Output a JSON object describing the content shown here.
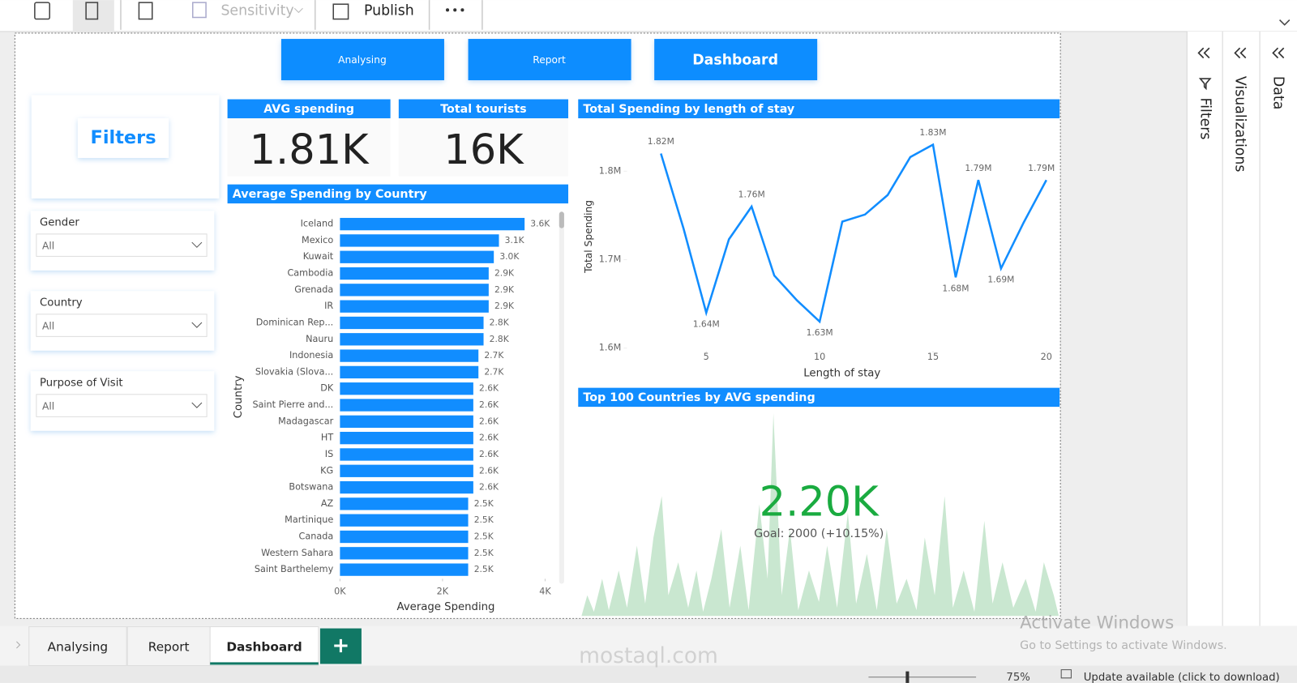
{
  "toolbar": {
    "sensitivity": "Sensitivity",
    "publish": "Publish"
  },
  "nav": [
    "Analysing",
    "Report",
    "Dashboard"
  ],
  "filters": {
    "title": "Filters",
    "slicers": [
      {
        "label": "Gender",
        "value": "All"
      },
      {
        "label": "Country",
        "value": "All"
      },
      {
        "label": "Purpose of Visit",
        "value": "All"
      }
    ]
  },
  "cards": [
    {
      "title": "AVG spending",
      "value": "1.81K"
    },
    {
      "title": "Total tourists",
      "value": "16K"
    }
  ],
  "chart_data": [
    {
      "type": "bar",
      "title": "Average Spending by Country",
      "x_label": "Average Spending",
      "y_label": "Country",
      "orientation": "horizontal",
      "color": "#118DFF",
      "categories": [
        "Iceland",
        "Mexico",
        "Kuwait",
        "Cambodia",
        "Grenada",
        "IR",
        "Dominican Rep...",
        "Nauru",
        "Indonesia",
        "Slovakia (Slova...",
        "DK",
        "Saint Pierre and...",
        "Madagascar",
        "HT",
        "IS",
        "KG",
        "Botswana",
        "AZ",
        "Martinique",
        "Canada",
        "Western Sahara",
        "Saint Barthelemy"
      ],
      "values": [
        3600,
        3100,
        3000,
        2900,
        2900,
        2900,
        2800,
        2800,
        2700,
        2700,
        2600,
        2600,
        2600,
        2600,
        2600,
        2600,
        2600,
        2500,
        2500,
        2500,
        2500,
        2500
      ],
      "value_labels": [
        "3.6K",
        "3.1K",
        "3.0K",
        "2.9K",
        "2.9K",
        "2.9K",
        "2.8K",
        "2.8K",
        "2.7K",
        "2.7K",
        "2.6K",
        "2.6K",
        "2.6K",
        "2.6K",
        "2.6K",
        "2.6K",
        "2.6K",
        "2.5K",
        "2.5K",
        "2.5K",
        "2.5K",
        "2.5K"
      ],
      "xlim": [
        0,
        4000
      ],
      "xticks": [
        {
          "value": 0,
          "label": "0K"
        },
        {
          "value": 2000,
          "label": "2K"
        },
        {
          "value": 4000,
          "label": "4K"
        }
      ]
    },
    {
      "type": "line",
      "title": "Total Spending by length of stay",
      "x_label": "Length of stay",
      "y_label": "Total Spending",
      "color": "#118DFF",
      "x": [
        3,
        4,
        5,
        6,
        7,
        8,
        9,
        10,
        11,
        12,
        13,
        14,
        15,
        16,
        17,
        18,
        19,
        20
      ],
      "values": [
        1820000,
        1735000,
        1640000,
        1723000,
        1760000,
        1682000,
        1654000,
        1630000,
        1743000,
        1751000,
        1773000,
        1816000,
        1830000,
        1680000,
        1790000,
        1690000,
        1742000,
        1790000
      ],
      "value_labels": [
        "1.82M",
        null,
        "1.64M",
        null,
        "1.76M",
        null,
        null,
        "1.63M",
        null,
        null,
        null,
        null,
        "1.83M",
        "1.68M",
        "1.79M",
        "1.69M",
        null,
        "1.79M"
      ],
      "xlim": [
        3,
        20
      ],
      "ylim": [
        1600000,
        1850000
      ],
      "xticks": [
        5,
        10,
        15,
        20
      ],
      "yticks": [
        {
          "value": 1600000,
          "label": "1.6M"
        },
        {
          "value": 1700000,
          "label": "1.7M"
        },
        {
          "value": 1800000,
          "label": "1.8M"
        }
      ]
    }
  ],
  "kpi": {
    "title": "Top 100 Countries by AVG spending",
    "value": "2.20K",
    "goal": "Goal: 2000 (+10.15%)"
  },
  "tabs": [
    "Analysing",
    "Report",
    "Dashboard"
  ],
  "panes": [
    "Filters",
    "Visualizations",
    "Data"
  ],
  "status": {
    "zoom": "75%",
    "update": "Update available (click to download)"
  },
  "watermarks": {
    "site": "mostaql.com",
    "activate": "Activate Windows",
    "activate_hint": "Go to Settings to activate Windows."
  }
}
